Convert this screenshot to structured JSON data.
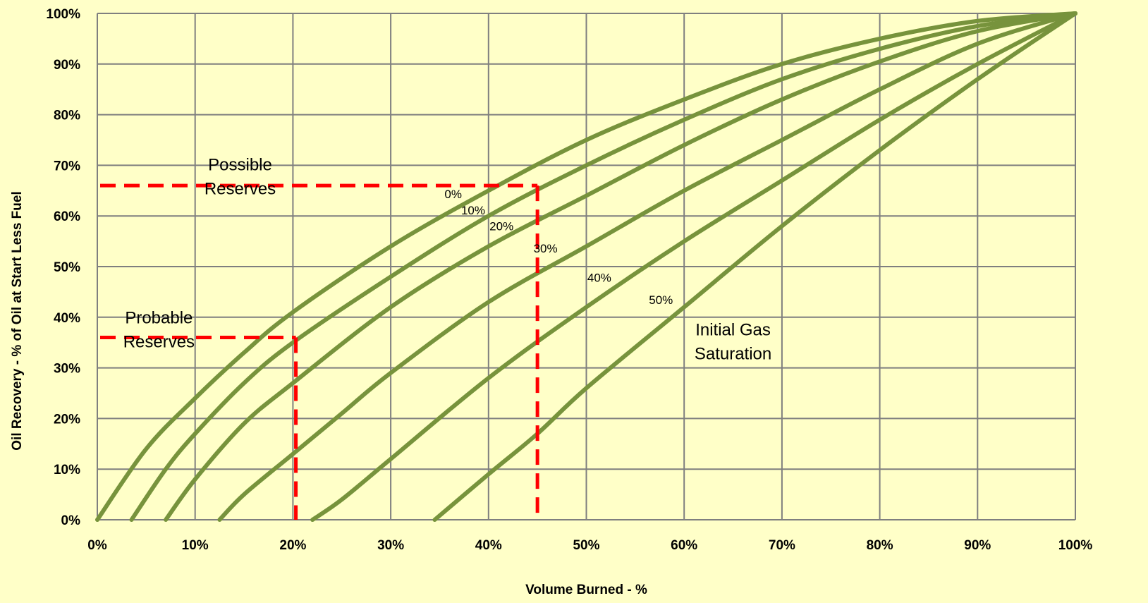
{
  "chart_data": {
    "type": "line",
    "title": "",
    "xlabel": "Volume Burned - %",
    "ylabel": "Oil Recovery - % of Oil at Start Less Fuel",
    "xlim": [
      0,
      100
    ],
    "ylim": [
      0,
      100
    ],
    "grid": true,
    "x_tick_labels": [
      "0%",
      "10%",
      "20%",
      "30%",
      "40%",
      "50%",
      "60%",
      "70%",
      "80%",
      "90%",
      "100%"
    ],
    "y_tick_labels": [
      "0%",
      "10%",
      "20%",
      "30%",
      "40%",
      "50%",
      "60%",
      "70%",
      "80%",
      "90%",
      "100%"
    ],
    "series": [
      {
        "name": "0%",
        "color": "#77933c",
        "x": [
          0,
          5,
          10,
          15,
          20,
          30,
          40,
          50,
          60,
          70,
          80,
          90,
          100
        ],
        "y": [
          0,
          14,
          24,
          33,
          41,
          54,
          65,
          75,
          83,
          90,
          95,
          98.5,
          100
        ]
      },
      {
        "name": "10%",
        "color": "#77933c",
        "x": [
          3.5,
          7,
          10,
          15,
          20,
          30,
          40,
          50,
          60,
          70,
          80,
          90,
          100
        ],
        "y": [
          0,
          10,
          17,
          27,
          35,
          48,
          60,
          70,
          79,
          87,
          93,
          97.5,
          100
        ]
      },
      {
        "name": "20%",
        "color": "#77933c",
        "x": [
          7,
          10,
          15,
          20,
          30,
          40,
          50,
          60,
          70,
          80,
          90,
          100
        ],
        "y": [
          0,
          8,
          19,
          27,
          42,
          54,
          64,
          74,
          83,
          90.5,
          96.5,
          100
        ]
      },
      {
        "name": "30%",
        "color": "#77933c",
        "x": [
          12.5,
          15,
          20,
          25,
          30,
          40,
          50,
          60,
          70,
          80,
          90,
          100
        ],
        "y": [
          0,
          5,
          13,
          21,
          29,
          43,
          54,
          65,
          75,
          85,
          94,
          100
        ]
      },
      {
        "name": "40%",
        "color": "#77933c",
        "x": [
          22,
          25,
          30,
          40,
          50,
          60,
          70,
          80,
          90,
          100
        ],
        "y": [
          0,
          4,
          12,
          28,
          42,
          55,
          67,
          79,
          90,
          100
        ]
      },
      {
        "name": "50%",
        "color": "#77933c",
        "x": [
          34.5,
          40,
          45,
          50,
          60,
          70,
          80,
          90,
          100
        ],
        "y": [
          0,
          9,
          17,
          26,
          42,
          58,
          73,
          87,
          100
        ]
      }
    ],
    "curve_labels": [
      {
        "text": "0%",
        "x": 35.5,
        "y": 63.5
      },
      {
        "text": "10%",
        "x": 37.2,
        "y": 60.3
      },
      {
        "text": "20%",
        "x": 40.1,
        "y": 57.2
      },
      {
        "text": "30%",
        "x": 44.6,
        "y": 52.8
      },
      {
        "text": "40%",
        "x": 50.1,
        "y": 47.0
      },
      {
        "text": "50%",
        "x": 56.4,
        "y": 42.6
      }
    ],
    "reference_lines": [
      {
        "name": "possible",
        "color": "#ff0000",
        "x": 45,
        "y": 66
      },
      {
        "name": "probable",
        "color": "#ff0000",
        "x": 20.3,
        "y": 36
      }
    ],
    "annotations": [
      {
        "name": "possible",
        "lines": [
          "Possible",
          "Reserves"
        ],
        "x": 14.6,
        "y": 69.0
      },
      {
        "name": "probable",
        "lines": [
          "Probable",
          "Reserves"
        ],
        "x": 6.3,
        "y": 38.8
      },
      {
        "name": "saturation",
        "lines": [
          "Initial Gas",
          "Saturation"
        ],
        "x": 65.0,
        "y": 36.4
      }
    ],
    "colors": {
      "background": "#ffffc8",
      "grid": "#7f7f7f",
      "curve": "#77933c",
      "reference": "#ff0000"
    }
  }
}
